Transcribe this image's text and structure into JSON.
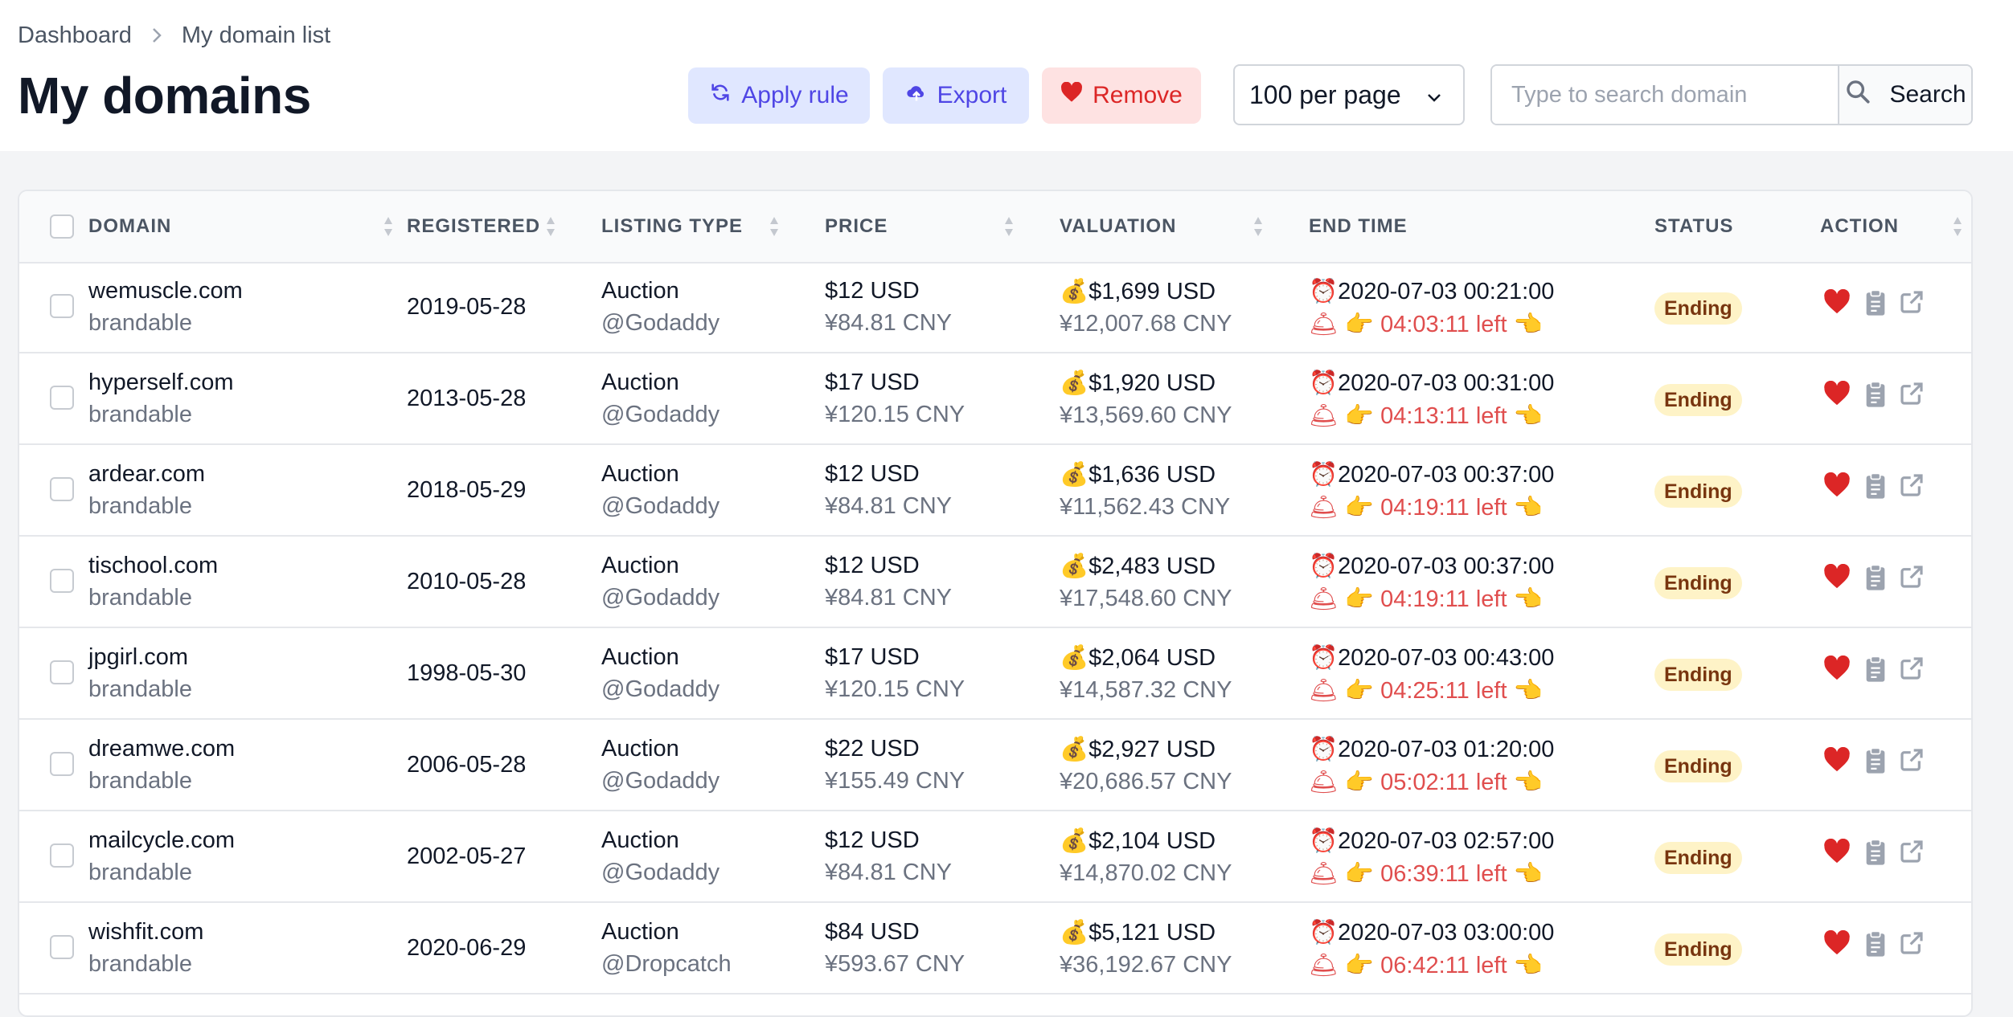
{
  "breadcrumb": {
    "root": "Dashboard",
    "current": "My domain list"
  },
  "page_title": "My domains",
  "toolbar": {
    "apply_rule": "Apply rule",
    "export": "Export",
    "remove": "Remove",
    "per_page": "100 per page",
    "search_placeholder": "Type to search domain",
    "search_button": "Search"
  },
  "colors": {
    "accent": "#4f46e5",
    "danger": "#dc2626",
    "badge_bg": "#fef3c7",
    "heart": "#dc2626"
  },
  "table": {
    "columns": [
      "DOMAIN",
      "REGISTERED",
      "LISTING TYPE",
      "PRICE",
      "VALUATION",
      "END TIME",
      "STATUS",
      "ACTION"
    ],
    "rows": [
      {
        "domain": "wemuscle.com",
        "category": "brandable",
        "registered": "2019-05-28",
        "listing_type": "Auction",
        "platform": "@Godaddy",
        "price_usd": "$12 USD",
        "price_cny": "¥84.81 CNY",
        "valuation_usd": "$1,699 USD",
        "valuation_cny": "¥12,007.68 CNY",
        "end_time": "2020-07-03 00:21:00",
        "time_left": "04:03:11 left",
        "status": "Ending"
      },
      {
        "domain": "hyperself.com",
        "category": "brandable",
        "registered": "2013-05-28",
        "listing_type": "Auction",
        "platform": "@Godaddy",
        "price_usd": "$17 USD",
        "price_cny": "¥120.15 CNY",
        "valuation_usd": "$1,920 USD",
        "valuation_cny": "¥13,569.60 CNY",
        "end_time": "2020-07-03 00:31:00",
        "time_left": "04:13:11 left",
        "status": "Ending"
      },
      {
        "domain": "ardear.com",
        "category": "brandable",
        "registered": "2018-05-29",
        "listing_type": "Auction",
        "platform": "@Godaddy",
        "price_usd": "$12 USD",
        "price_cny": "¥84.81 CNY",
        "valuation_usd": "$1,636 USD",
        "valuation_cny": "¥11,562.43 CNY",
        "end_time": "2020-07-03 00:37:00",
        "time_left": "04:19:11 left",
        "status": "Ending"
      },
      {
        "domain": "tischool.com",
        "category": "brandable",
        "registered": "2010-05-28",
        "listing_type": "Auction",
        "platform": "@Godaddy",
        "price_usd": "$12 USD",
        "price_cny": "¥84.81 CNY",
        "valuation_usd": "$2,483 USD",
        "valuation_cny": "¥17,548.60 CNY",
        "end_time": "2020-07-03 00:37:00",
        "time_left": "04:19:11 left",
        "status": "Ending"
      },
      {
        "domain": "jpgirl.com",
        "category": "brandable",
        "registered": "1998-05-30",
        "listing_type": "Auction",
        "platform": "@Godaddy",
        "price_usd": "$17 USD",
        "price_cny": "¥120.15 CNY",
        "valuation_usd": "$2,064 USD",
        "valuation_cny": "¥14,587.32 CNY",
        "end_time": "2020-07-03 00:43:00",
        "time_left": "04:25:11 left",
        "status": "Ending"
      },
      {
        "domain": "dreamwe.com",
        "category": "brandable",
        "registered": "2006-05-28",
        "listing_type": "Auction",
        "platform": "@Godaddy",
        "price_usd": "$22 USD",
        "price_cny": "¥155.49 CNY",
        "valuation_usd": "$2,927 USD",
        "valuation_cny": "¥20,686.57 CNY",
        "end_time": "2020-07-03 01:20:00",
        "time_left": "05:02:11 left",
        "status": "Ending"
      },
      {
        "domain": "mailcycle.com",
        "category": "brandable",
        "registered": "2002-05-27",
        "listing_type": "Auction",
        "platform": "@Godaddy",
        "price_usd": "$12 USD",
        "price_cny": "¥84.81 CNY",
        "valuation_usd": "$2,104 USD",
        "valuation_cny": "¥14,870.02 CNY",
        "end_time": "2020-07-03 02:57:00",
        "time_left": "06:39:11 left",
        "status": "Ending"
      },
      {
        "domain": "wishfit.com",
        "category": "brandable",
        "registered": "2020-06-29",
        "listing_type": "Auction",
        "platform": "@Dropcatch",
        "price_usd": "$84 USD",
        "price_cny": "¥593.67 CNY",
        "valuation_usd": "$5,121 USD",
        "valuation_cny": "¥36,192.67 CNY",
        "end_time": "2020-07-03 03:00:00",
        "time_left": "06:42:11 left",
        "status": "Ending"
      }
    ]
  }
}
